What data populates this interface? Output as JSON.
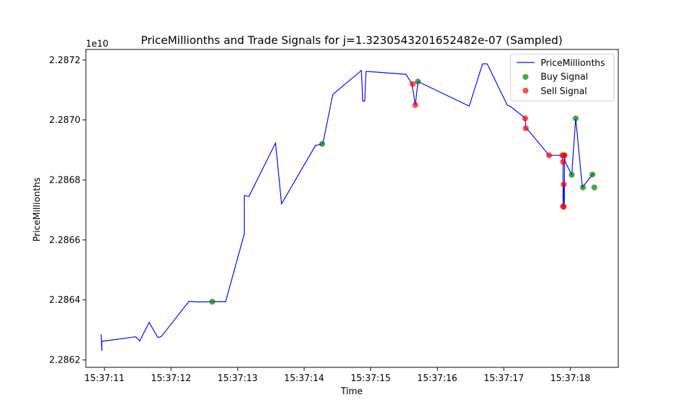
{
  "chart_data": {
    "type": "line",
    "title": "PriceMillionths and Trade Signals for j=1.3230543201652482e-07 (Sampled)",
    "xlabel": "Time",
    "ylabel": "PriceMillionths",
    "y_offset_label": "1e10",
    "xlim": [
      10.72,
      18.72
    ],
    "ylim": [
      22861.75,
      22872.35
    ],
    "x_ticks": [
      {
        "value": 11,
        "label": "15:37:11"
      },
      {
        "value": 12,
        "label": "15:37:12"
      },
      {
        "value": 13,
        "label": "15:37:13"
      },
      {
        "value": 14,
        "label": "15:37:14"
      },
      {
        "value": 15,
        "label": "15:37:15"
      },
      {
        "value": 16,
        "label": "15:37:16"
      },
      {
        "value": 17,
        "label": "15:37:17"
      },
      {
        "value": 18,
        "label": "15:37:18"
      }
    ],
    "y_ticks": [
      {
        "value": 22862,
        "label": "2.2862"
      },
      {
        "value": 22864,
        "label": "2.2864"
      },
      {
        "value": 22866,
        "label": "2.2866"
      },
      {
        "value": 22868,
        "label": "2.2868"
      },
      {
        "value": 22870,
        "label": "2.2870"
      },
      {
        "value": 22872,
        "label": "2.2872"
      }
    ],
    "legend": {
      "position": "upper right",
      "entries": [
        "PriceMillionths",
        "Buy Signal",
        "Sell Signal"
      ]
    },
    "colors": {
      "line": "#0000ff",
      "buy": "#008000",
      "sell": "#ff0000"
    },
    "series": [
      {
        "name": "PriceMillionths",
        "kind": "line",
        "x": [
          10.95,
          10.96,
          10.96,
          10.97,
          11.47,
          11.53,
          11.67,
          11.8,
          11.85,
          12.27,
          12.4,
          12.62,
          12.82,
          13.1,
          13.1,
          13.17,
          13.57,
          13.66,
          14.17,
          14.28,
          14.43,
          14.86,
          14.88,
          14.91,
          14.93,
          15.53,
          15.62,
          15.67,
          15.71,
          16.48,
          16.68,
          16.75,
          17.05,
          17.1,
          17.3,
          17.32,
          17.33,
          17.35,
          17.68,
          17.87,
          17.89,
          17.89,
          17.9,
          17.91,
          17.91,
          17.92,
          18.02,
          18.02,
          18.08,
          18.18,
          18.33,
          18.35,
          18.36
        ],
        "y": [
          22862.85,
          22862.3,
          22862.6,
          22862.62,
          22862.77,
          22862.63,
          22863.25,
          22862.75,
          22862.77,
          22863.95,
          22863.93,
          22863.94,
          22863.94,
          22866.2,
          22867.48,
          22867.45,
          22869.23,
          22867.2,
          22869.15,
          22869.2,
          22870.85,
          22871.65,
          22870.63,
          22870.63,
          22871.62,
          22871.52,
          22871.2,
          22870.5,
          22871.28,
          22870.46,
          22871.87,
          22871.87,
          22870.5,
          22870.45,
          22870.1,
          22870.05,
          22869.72,
          22869.7,
          22868.82,
          22868.82,
          22868.6,
          22867.1,
          22867.85,
          22867.1,
          22868.82,
          22868.62,
          22868.17,
          22868.17,
          22870.05,
          22867.75,
          22868.17,
          22868.2,
          22868.17
        ]
      },
      {
        "name": "Buy Signal",
        "kind": "scatter",
        "x": [
          12.62,
          14.27,
          15.71,
          17.91,
          18.02,
          18.08,
          18.19,
          18.33,
          18.36
        ],
        "y": [
          22863.94,
          22869.2,
          22871.28,
          22868.82,
          22868.17,
          22870.05,
          22867.75,
          22868.18,
          22867.75
        ]
      },
      {
        "name": "Sell Signal",
        "kind": "scatter",
        "x": [
          15.63,
          15.67,
          17.32,
          17.33,
          17.68,
          17.88,
          17.89,
          17.9,
          17.89,
          17.9,
          17.91
        ],
        "y": [
          22871.2,
          22870.5,
          22870.05,
          22869.72,
          22868.82,
          22868.82,
          22868.6,
          22867.85,
          22867.12,
          22867.1,
          22868.82
        ]
      }
    ]
  }
}
